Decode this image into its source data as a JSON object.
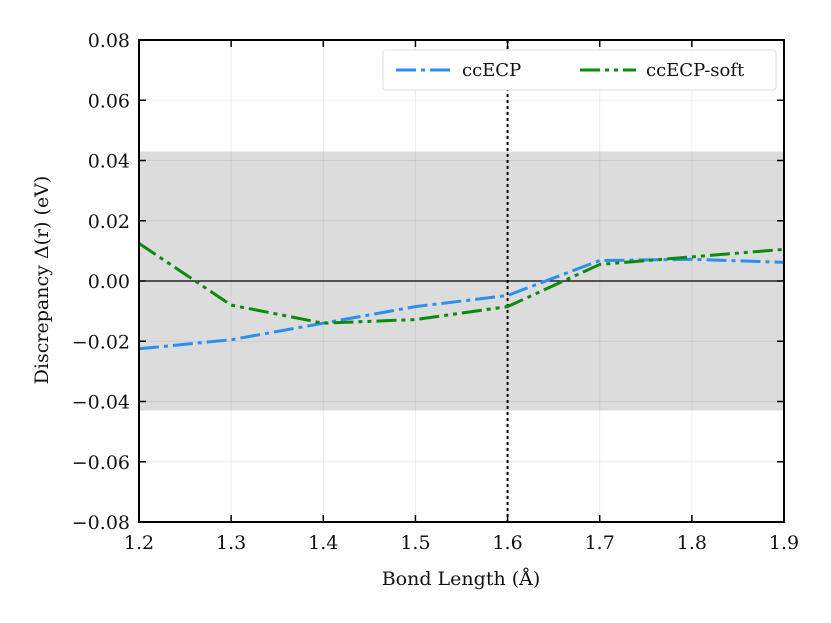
{
  "chart_data": {
    "type": "line",
    "xlabel": "Bond Length (Å)",
    "ylabel": "Discrepancy Δ(r) (eV)",
    "xlim": [
      1.2,
      1.9
    ],
    "ylim": [
      -0.08,
      0.08
    ],
    "xticks": [
      "1.2",
      "1.3",
      "1.4",
      "1.5",
      "1.6",
      "1.7",
      "1.8",
      "1.9"
    ],
    "yticks": [
      "−0.08",
      "−0.06",
      "−0.04",
      "−0.02",
      "0.00",
      "0.02",
      "0.04",
      "0.06",
      "0.08"
    ],
    "grid": true,
    "legend_position": "top-right",
    "shaded_band": {
      "y_min": -0.043,
      "y_max": 0.043,
      "color": "#dcdcdc"
    },
    "reference_hline": {
      "y": 0.0,
      "color": "#000000"
    },
    "reference_vline": {
      "x": 1.6,
      "color": "#000000",
      "style": "dotted"
    },
    "x": [
      1.2,
      1.3,
      1.4,
      1.5,
      1.6,
      1.7,
      1.8,
      1.9
    ],
    "series": [
      {
        "name": "ccECP",
        "color": "#2b8ff0",
        "style": "dashdot",
        "values": [
          -0.0225,
          -0.0195,
          -0.014,
          -0.0085,
          -0.0048,
          0.0068,
          0.0072,
          0.0062
        ]
      },
      {
        "name": "ccECP-soft",
        "color": "#0c8a0c",
        "style": "dashdotdot",
        "values": [
          0.0125,
          -0.008,
          -0.014,
          -0.0128,
          -0.0085,
          0.0055,
          0.008,
          0.0105
        ]
      }
    ]
  }
}
